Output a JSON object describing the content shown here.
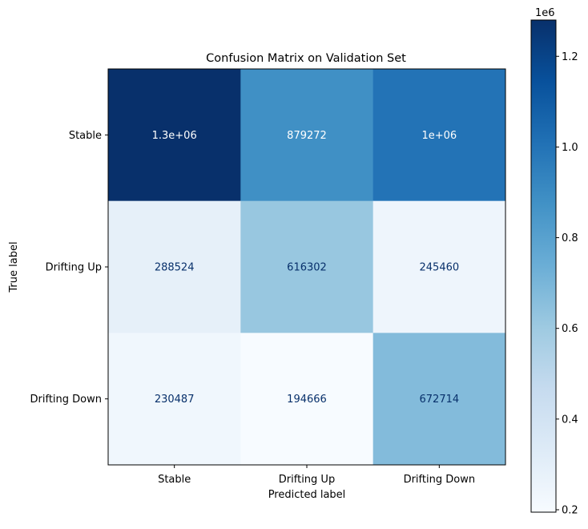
{
  "chart_data": {
    "type": "heatmap",
    "title": "Confusion Matrix on Validation Set",
    "xlabel": "Predicted label",
    "ylabel": "True label",
    "x_categories": [
      "Stable",
      "Drifting Up",
      "Drifting Down"
    ],
    "y_categories": [
      "Stable",
      "Drifting Up",
      "Drifting Down"
    ],
    "values": [
      [
        1280000,
        879272,
        1000000
      ],
      [
        288524,
        616302,
        245460
      ],
      [
        230487,
        194666,
        672714
      ]
    ],
    "cell_labels": [
      [
        "1.3e+06",
        "879272",
        "1e+06"
      ],
      [
        "288524",
        "616302",
        "245460"
      ],
      [
        "230487",
        "194666",
        "672714"
      ]
    ],
    "colormap": "Blues",
    "colorbar": {
      "min": 194666,
      "max": 1280000,
      "offset_label": "1e6",
      "ticks": [
        0.2,
        0.4,
        0.6,
        0.8,
        1.0,
        1.2
      ],
      "tick_labels": [
        "0.2",
        "0.4",
        "0.6",
        "0.8",
        "1.0",
        "1.2"
      ]
    },
    "grid": false
  }
}
